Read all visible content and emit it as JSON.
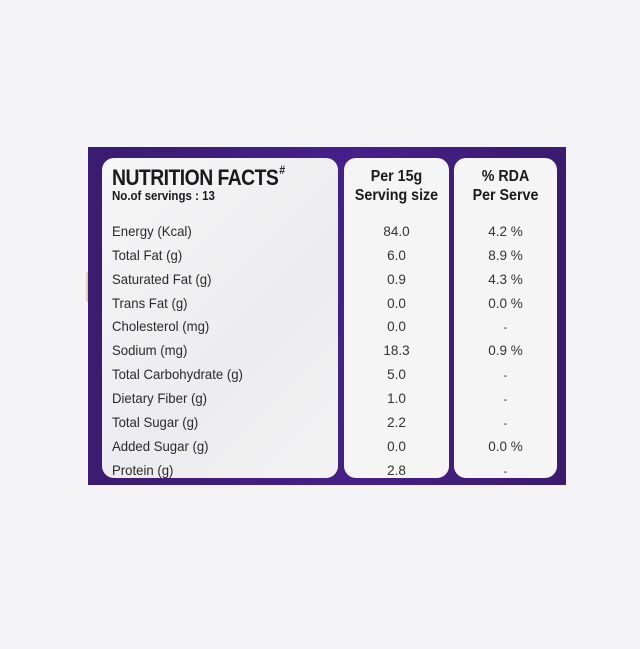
{
  "panel": {
    "title": "NUTRITION FACTS",
    "title_mark": "#",
    "servings": "No.of servings : 13",
    "col_per_line1": "Per 15g",
    "col_per_line2": "Serving size",
    "col_rda_line1": "% RDA",
    "col_rda_line2": "Per Serve"
  },
  "colors": {
    "panel_purple": "#3b1d73",
    "card_bg": "#f5f5f6",
    "text": "#1a1a1a"
  },
  "rows": [
    {
      "nutrient": "Energy (Kcal)",
      "per_15g": "84.0",
      "rda": "4.2 %"
    },
    {
      "nutrient": "Total Fat (g)",
      "per_15g": "6.0",
      "rda": "8.9 %"
    },
    {
      "nutrient": "Saturated Fat (g)",
      "per_15g": "0.9",
      "rda": "4.3 %"
    },
    {
      "nutrient": "Trans Fat (g)",
      "per_15g": "0.0",
      "rda": "0.0 %"
    },
    {
      "nutrient": "Cholesterol (mg)",
      "per_15g": "0.0",
      "rda": "-"
    },
    {
      "nutrient": "Sodium (mg)",
      "per_15g": "18.3",
      "rda": "0.9 %"
    },
    {
      "nutrient": "Total Carbohydrate (g)",
      "per_15g": "5.0",
      "rda": "-"
    },
    {
      "nutrient": "Dietary Fiber (g)",
      "per_15g": "1.0",
      "rda": "-"
    },
    {
      "nutrient": "Total Sugar (g)",
      "per_15g": "2.2",
      "rda": "-"
    },
    {
      "nutrient": "Added Sugar (g)",
      "per_15g": "0.0",
      "rda": "0.0 %"
    },
    {
      "nutrient": "Protein (g)",
      "per_15g": "2.8",
      "rda": "-"
    }
  ]
}
